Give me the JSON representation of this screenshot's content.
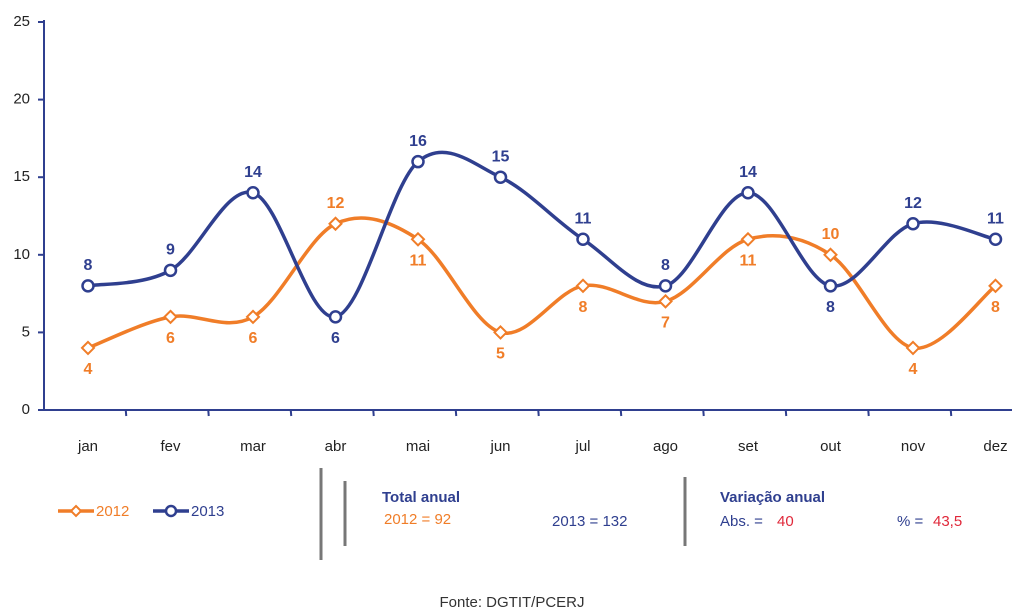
{
  "chart_data": {
    "type": "line",
    "categories": [
      "jan",
      "fev",
      "mar",
      "abr",
      "mai",
      "jun",
      "jul",
      "ago",
      "set",
      "out",
      "nov",
      "dez"
    ],
    "series": [
      {
        "name": "2012",
        "color": "#f07d28",
        "marker": "diamond",
        "values": [
          4,
          6,
          6,
          12,
          11,
          5,
          8,
          7,
          11,
          10,
          4,
          8
        ]
      },
      {
        "name": "2013",
        "color": "#2f3f8f",
        "marker": "circle",
        "values": [
          8,
          9,
          14,
          6,
          16,
          15,
          11,
          8,
          14,
          8,
          12,
          11
        ]
      }
    ],
    "ylim": [
      0,
      25
    ],
    "yticks": [
      0,
      5,
      10,
      15,
      20,
      25
    ],
    "grid": false,
    "smooth": true,
    "legend": "bottom-left"
  },
  "summary": {
    "total_title": "Total anual",
    "total_2012": "2012 = 92",
    "total_2013": "2013 = 132",
    "variation_title": "Variação anual",
    "abs_label": "Abs.  =",
    "abs_value": "40",
    "pct_label": "%  =",
    "pct_value": "43,5"
  },
  "source": "Fonte: DGTIT/PCERJ"
}
